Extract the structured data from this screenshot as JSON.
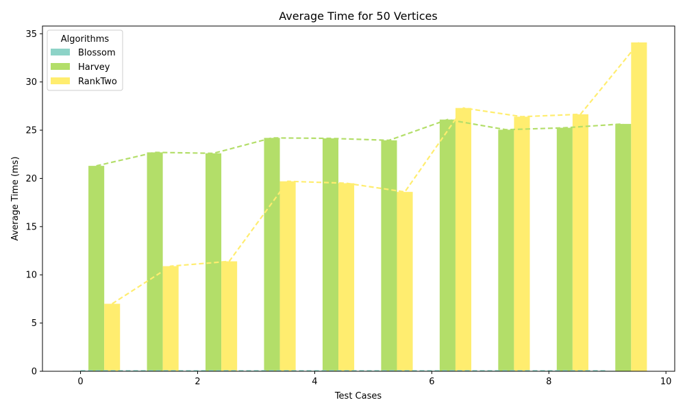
{
  "chart_data": {
    "type": "bar",
    "title": "Average Time for 50 Vertices",
    "xlabel": "Test Cases",
    "ylabel": "Average Time (ms)",
    "xlim": [
      -0.65,
      10.15
    ],
    "ylim": [
      0,
      35.8
    ],
    "x_ticks": [
      0,
      2,
      4,
      6,
      8,
      10
    ],
    "y_ticks": [
      0,
      5,
      10,
      15,
      20,
      25,
      30,
      35
    ],
    "categories": [
      0,
      1,
      2,
      3,
      4,
      5,
      6,
      7,
      8,
      9
    ],
    "legend_title": "Algorithms",
    "legend_position": "top-left",
    "grid": false,
    "series": [
      {
        "name": "Blossom",
        "color": "#8dd3c7",
        "values": [
          0.05,
          0.05,
          0.05,
          0.05,
          0.05,
          0.05,
          0.05,
          0.05,
          0.05,
          0.05
        ]
      },
      {
        "name": "Harvey",
        "color": "#b3de69",
        "values": [
          21.3,
          22.7,
          22.6,
          24.2,
          24.15,
          23.95,
          26.1,
          25.05,
          25.25,
          25.65
        ]
      },
      {
        "name": "RankTwo",
        "color": "#ffed6f",
        "values": [
          7.0,
          10.9,
          11.4,
          19.7,
          19.5,
          18.6,
          27.3,
          26.4,
          26.65,
          34.1
        ]
      }
    ]
  }
}
